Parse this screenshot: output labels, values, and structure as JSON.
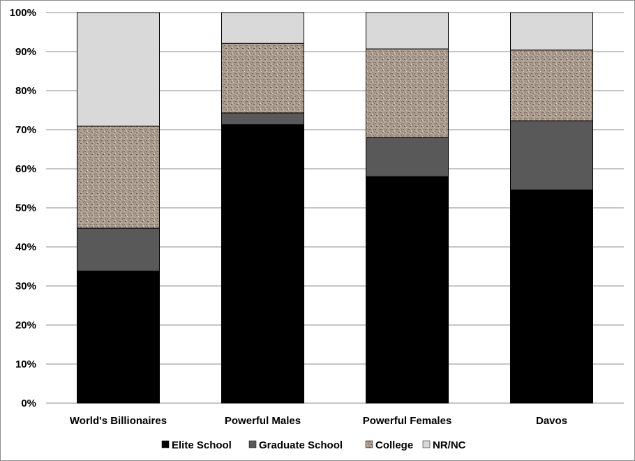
{
  "chart_data": {
    "type": "bar",
    "stacked": true,
    "categories": [
      "World's Billionaires",
      "Powerful Males",
      "Powerful Females",
      "Davos"
    ],
    "series": [
      {
        "name": "Elite School",
        "values": [
          33.8,
          71.3,
          58.0,
          54.6
        ],
        "color": "#000000"
      },
      {
        "name": "Graduate School",
        "values": [
          11.0,
          3.0,
          10.0,
          17.7
        ],
        "color": "#595959"
      },
      {
        "name": "College",
        "values": [
          26.1,
          17.8,
          22.7,
          18.1
        ],
        "color": "#a99b8d",
        "pattern": "speckled"
      },
      {
        "name": "NR/NC",
        "values": [
          29.1,
          7.9,
          9.3,
          9.6
        ],
        "color": "#d9d9d9"
      }
    ],
    "yticks": [
      "0%",
      "10%",
      "20%",
      "30%",
      "40%",
      "50%",
      "60%",
      "70%",
      "80%",
      "90%",
      "100%"
    ],
    "ylim": [
      0,
      100
    ],
    "grid": true,
    "legend": "bottom",
    "title": "",
    "xlabel": "",
    "ylabel": ""
  }
}
